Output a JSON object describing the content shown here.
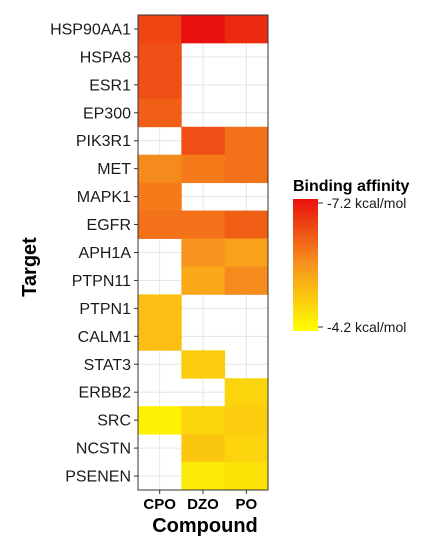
{
  "chart_data": {
    "type": "heatmap",
    "title": "",
    "xlabel": "Compound",
    "ylabel": "Target",
    "x_categories": [
      "CPO",
      "DZO",
      "PO"
    ],
    "y_categories": [
      "HSP90AA1",
      "HSPA8",
      "ESR1",
      "EP300",
      "PIK3R1",
      "MET",
      "MAPK1",
      "EGFR",
      "APH1A",
      "PTPN11",
      "PTPN1",
      "CALM1",
      "STAT3",
      "ERBB2",
      "SRC",
      "NCSTN",
      "PSENEN"
    ],
    "values": [
      [
        -6.6,
        -7.2,
        -6.9
      ],
      [
        -6.5,
        null,
        null
      ],
      [
        -6.5,
        null,
        null
      ],
      [
        -6.3,
        null,
        null
      ],
      [
        null,
        -6.5,
        -6.1
      ],
      [
        -5.8,
        -6.0,
        -6.1
      ],
      [
        -6.0,
        null,
        null
      ],
      [
        -6.1,
        -6.1,
        -6.3
      ],
      [
        null,
        -5.7,
        -5.5
      ],
      [
        null,
        -5.4,
        -5.8
      ],
      [
        -5.1,
        null,
        null
      ],
      [
        -5.1,
        null,
        null
      ],
      [
        null,
        -4.9,
        null
      ],
      [
        null,
        null,
        -4.8
      ],
      [
        -4.4,
        -4.8,
        -4.9
      ],
      [
        null,
        -5.0,
        -4.8
      ],
      [
        null,
        -4.5,
        -4.6
      ]
    ],
    "scale_min": -7.2,
    "scale_max": -4.2,
    "colors": {
      "high": "#e8100c",
      "mid": "#f7941e",
      "low": "#ffff00"
    },
    "grid": true,
    "legend": {
      "title": "Binding affinity",
      "placement": "right",
      "max_label": "-7.2 kcal/mol",
      "min_label": "-4.2 kcal/mol"
    }
  }
}
